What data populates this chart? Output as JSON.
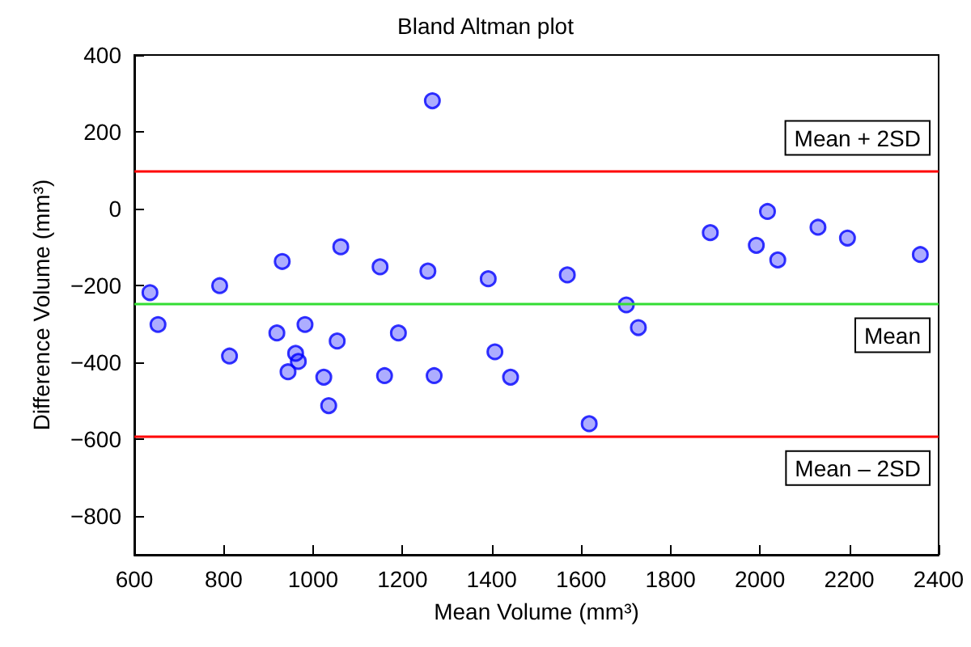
{
  "chart_data": {
    "type": "scatter",
    "title": "Bland Altman plot",
    "xlabel": "Mean Volume (mm³)",
    "ylabel": "Difference Volume (mm³)",
    "x": [
      635,
      653,
      791,
      813,
      931,
      919,
      982,
      961,
      967,
      944,
      1024,
      1035,
      1054,
      1062,
      1150,
      1160,
      1191,
      1257,
      1267,
      1271,
      1392,
      1407,
      1442,
      1569,
      1701,
      1728,
      1618,
      1889,
      1992,
      2017,
      2040,
      2130,
      2196,
      2359
    ],
    "series": [
      {
        "color": "#0000ff",
        "values": [
          -218,
          -301,
          -200,
          -383,
          -137,
          -323,
          -301,
          -376,
          -397,
          -424,
          -438,
          -512,
          -344,
          -99,
          -151,
          -434,
          -323,
          -162,
          281,
          -434,
          -182,
          -372,
          -438,
          -172,
          -250,
          -309,
          -559,
          -62,
          -95,
          -7,
          -133,
          -48,
          -76,
          -119
        ]
      }
    ],
    "xlim": [
      600,
      2400
    ],
    "xticks": [
      600,
      800,
      1000,
      1200,
      1400,
      1600,
      1800,
      2000,
      2200,
      2400
    ],
    "ylim": [
      -900,
      400
    ],
    "yticks": [
      -800,
      -600,
      -400,
      -200,
      0,
      200,
      400
    ],
    "ref_lines": [
      {
        "axis": "y",
        "value": 100,
        "label": "Mean + 2SD",
        "color": "#ff0000"
      },
      {
        "axis": "y",
        "value": -245,
        "label": "Mean",
        "color": "#33dd33"
      },
      {
        "axis": "y",
        "value": -590,
        "label": "Mean – 2SD",
        "color": "#ff0000"
      }
    ],
    "marker": "circle",
    "grid": false
  }
}
